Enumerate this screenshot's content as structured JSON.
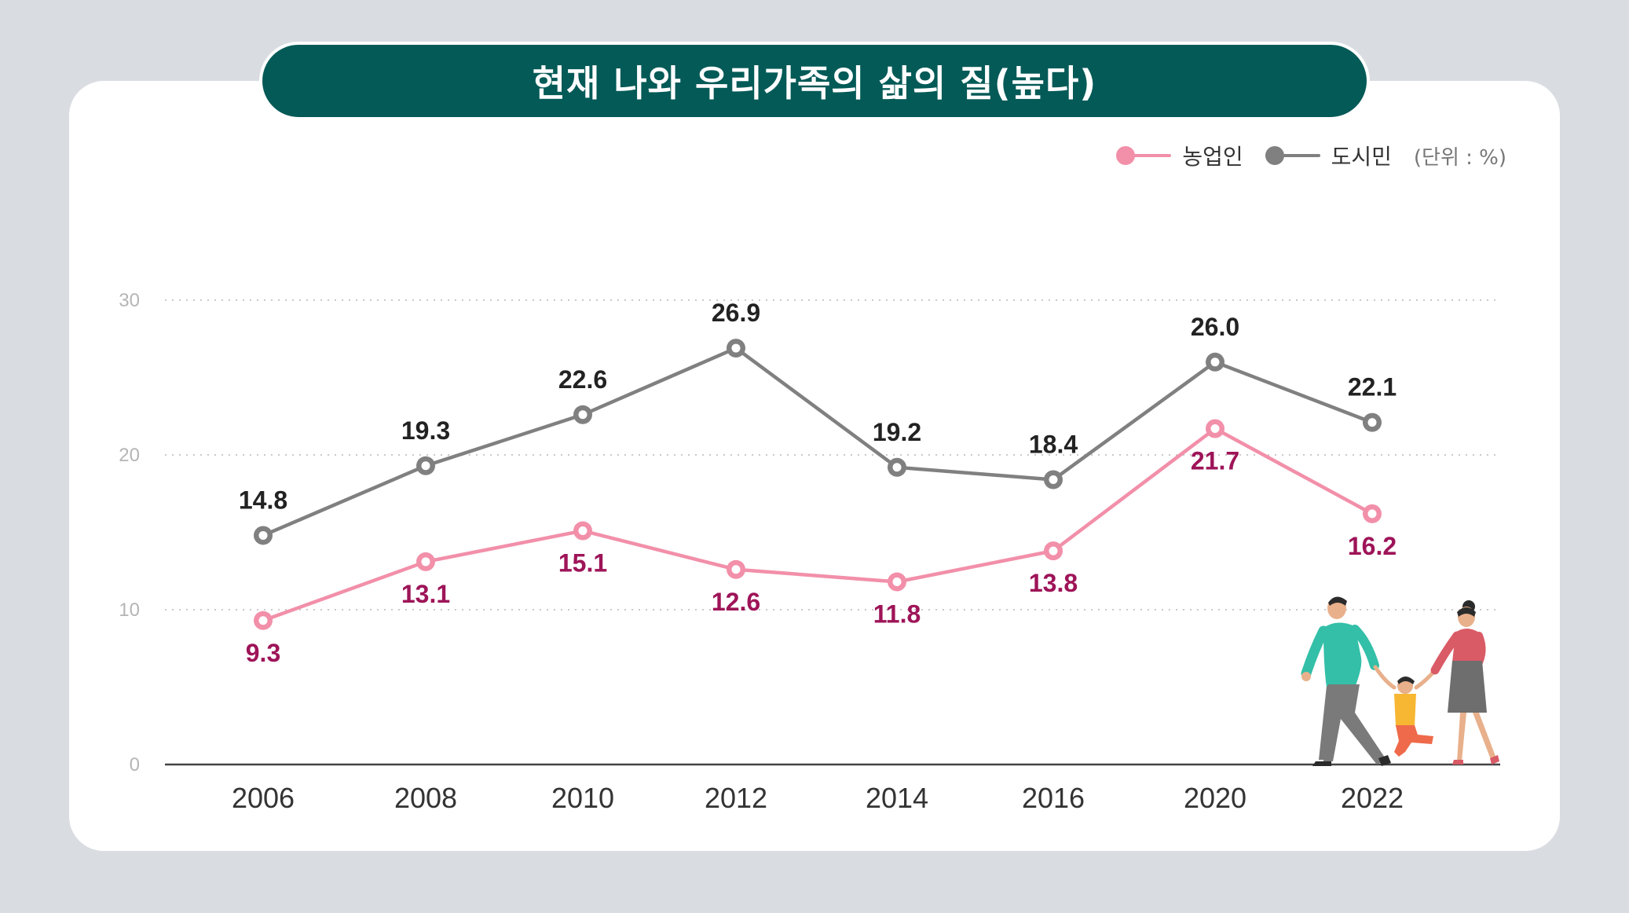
{
  "chart_data": {
    "type": "line",
    "title": "현재 나와 우리가족의 삶의 질(높다)",
    "unit": "(단위 : %)",
    "categories": [
      "2006",
      "2008",
      "2010",
      "2012",
      "2014",
      "2016",
      "2020",
      "2022"
    ],
    "series": [
      {
        "name": "농업인",
        "color": "#f28fa9",
        "label_color": "#9e1458",
        "values": [
          9.3,
          13.1,
          15.1,
          12.6,
          11.8,
          13.8,
          21.7,
          16.2
        ],
        "labels": [
          "9.3",
          "13.1",
          "15.1",
          "12.6",
          "11.8",
          "13.8",
          "21.7",
          "16.2"
        ]
      },
      {
        "name": "도시민",
        "color": "#808080",
        "label_color": "#222222",
        "values": [
          14.8,
          19.3,
          22.6,
          26.9,
          19.2,
          18.4,
          26.0,
          22.1
        ],
        "labels": [
          "14.8",
          "19.3",
          "22.6",
          "26.9",
          "19.2",
          "18.4",
          "26.0",
          "22.1"
        ]
      }
    ],
    "yticks": [
      "0",
      "10",
      "20",
      "30"
    ],
    "ylim": [
      0,
      30
    ],
    "grid": true,
    "legend_position": "top-right"
  }
}
